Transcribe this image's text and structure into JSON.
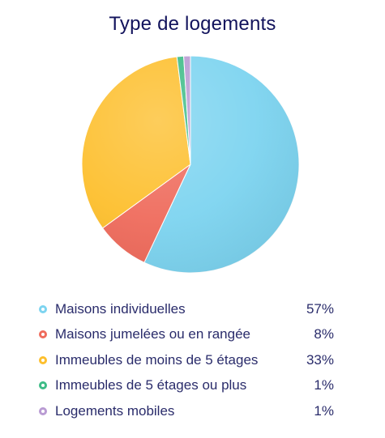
{
  "chart_data": {
    "type": "pie",
    "title": "Type de logements",
    "categories": [
      "Maisons individuelles",
      "Maisons jumelées ou en rangée",
      "Immeubles de moins de 5 étages",
      "Immeubles de 5 étages ou plus",
      "Logements mobiles"
    ],
    "values": [
      57,
      8,
      33,
      1,
      1
    ],
    "value_labels": [
      "57%",
      "8%",
      "33%",
      "1%",
      "1%"
    ],
    "colors": [
      "#7dd4f0",
      "#ef6b5c",
      "#fdbf2d",
      "#3ebc87",
      "#b99bd3"
    ],
    "legend_position": "bottom",
    "start_angle_deg": 0,
    "direction": "clockwise"
  }
}
